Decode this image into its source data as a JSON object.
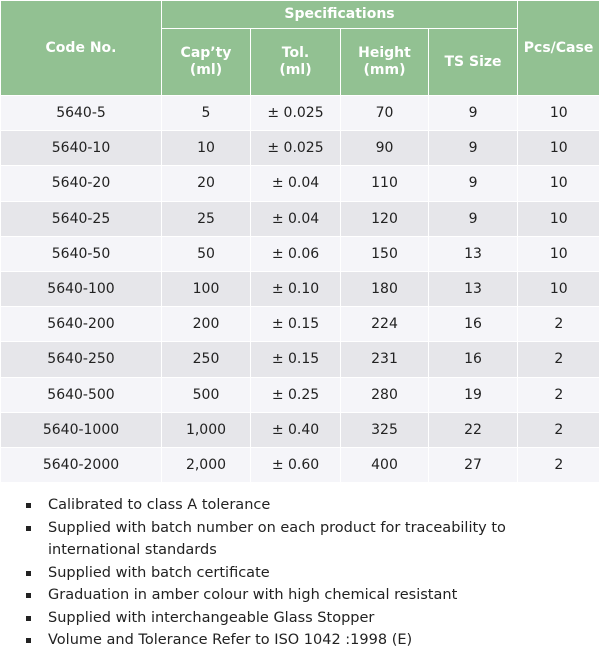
{
  "table": {
    "code_header": "Code No.",
    "group_header": "Specifications",
    "spec_headers": [
      {
        "name": "Cap’ty",
        "unit": "(ml)"
      },
      {
        "name": "Tol.",
        "unit": "(ml)"
      },
      {
        "name": "Height",
        "unit": "(mm)"
      },
      {
        "name": "TS Size"
      }
    ],
    "pcs_header": "Pcs/Case",
    "rows": [
      [
        "5640-5",
        "5",
        "± 0.025",
        "70",
        "9",
        "10"
      ],
      [
        "5640-10",
        "10",
        "± 0.025",
        "90",
        "9",
        "10"
      ],
      [
        "5640-20",
        "20",
        "± 0.04",
        "110",
        "9",
        "10"
      ],
      [
        "5640-25",
        "25",
        "± 0.04",
        "120",
        "9",
        "10"
      ],
      [
        "5640-50",
        "50",
        "± 0.06",
        "150",
        "13",
        "10"
      ],
      [
        "5640-100",
        "100",
        "± 0.10",
        "180",
        "13",
        "10"
      ],
      [
        "5640-200",
        "200",
        "± 0.15",
        "224",
        "16",
        "2"
      ],
      [
        "5640-250",
        "250",
        "± 0.15",
        "231",
        "16",
        "2"
      ],
      [
        "5640-500",
        "500",
        "± 0.25",
        "280",
        "19",
        "2"
      ],
      [
        "5640-1000",
        "1,000",
        "± 0.40",
        "325",
        "22",
        "2"
      ],
      [
        "5640-2000",
        "2,000",
        "± 0.60",
        "400",
        "27",
        "2"
      ]
    ]
  },
  "notes": [
    "Calibrated to class A tolerance",
    "Supplied with batch number on each product for traceability to international standards",
    "Supplied with batch certificate",
    "Graduation in amber colour with high chemical resistant",
    "Supplied with interchangeable Glass Stopper",
    "Volume and Tolerance Refer to ISO 1042 :1998 (E)"
  ]
}
